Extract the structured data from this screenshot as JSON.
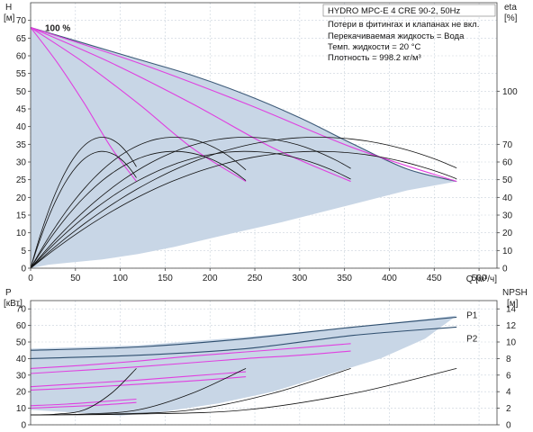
{
  "chart_data": [
    {
      "type": "line",
      "title": "HYDRO MPC-E 4 CRE 90-2, 50Hz",
      "notes": [
        "Потери в фитингах и клапанах не вкл.",
        "Перекачиваемая жидкость = Вода",
        "Темп. жидкости = 20 °C",
        "Плотность = 998.2 кг/м³"
      ],
      "ylabel_line1": "H",
      "ylabel_line2": "[м]",
      "y2label_line1": "eta",
      "y2label_line2": "[%]",
      "xlabel": "Q [м³/ч]",
      "xlim": [
        0,
        520
      ],
      "ylim": [
        0,
        75
      ],
      "y2lim": [
        0,
        150
      ],
      "xticks": [
        0,
        50,
        100,
        150,
        200,
        250,
        300,
        350,
        400,
        450,
        500
      ],
      "yticks": [
        0,
        5,
        10,
        15,
        20,
        25,
        30,
        35,
        40,
        45,
        50,
        55,
        60,
        65,
        70
      ],
      "y2ticks": [
        0,
        10,
        20,
        30,
        40,
        50,
        60,
        70,
        100
      ],
      "grid": true,
      "annotations": [
        {
          "text": "100 %",
          "x": 12,
          "y": 67.5
        }
      ],
      "envelope": {
        "x": [
          0,
          60,
          120,
          180,
          240,
          300,
          360,
          420,
          475,
          420,
          350,
          280,
          210,
          160,
          120,
          80,
          40,
          20,
          0
        ],
        "y": [
          68,
          63.5,
          59,
          54.5,
          49,
          42.5,
          35,
          28,
          24.5,
          22,
          17.5,
          13,
          9,
          6,
          4,
          2.5,
          1.5,
          1,
          0
        ]
      },
      "head_curves": [
        {
          "x": [
            0,
            30,
            60,
            90,
            118
          ],
          "y": [
            68,
            58,
            46.5,
            34,
            24.5
          ]
        },
        {
          "x": [
            0,
            60,
            120,
            180,
            240
          ],
          "y": [
            68,
            58,
            46.5,
            34,
            24.5
          ]
        },
        {
          "x": [
            0,
            90,
            180,
            270,
            357
          ],
          "y": [
            68,
            58,
            46.5,
            34,
            24.5
          ]
        },
        {
          "x": [
            0,
            120,
            240,
            360,
            475
          ],
          "y": [
            68,
            58,
            46.5,
            34,
            24.5
          ]
        }
      ],
      "efficiency_curves": [
        {
          "peak_x": 80,
          "max_x": 118,
          "peak": 74
        },
        {
          "peak_x": 160,
          "max_x": 240,
          "peak": 74
        },
        {
          "peak_x": 240,
          "max_x": 357,
          "peak": 74
        },
        {
          "peak_x": 320,
          "max_x": 475,
          "peak": 74
        },
        {
          "peak_x": 80,
          "max_x": 118,
          "peak": 66
        },
        {
          "peak_x": 160,
          "max_x": 240,
          "peak": 66
        },
        {
          "peak_x": 240,
          "max_x": 357,
          "peak": 66
        },
        {
          "peak_x": 320,
          "max_x": 475,
          "peak": 66
        }
      ]
    },
    {
      "type": "line",
      "ylabel_line1": "P",
      "ylabel_line2": "[кВт]",
      "y2label_line1": "NPSH",
      "y2label_line2": "[м]",
      "xlim": [
        0,
        520
      ],
      "ylim": [
        0,
        75
      ],
      "y2lim": [
        0,
        15
      ],
      "yticks": [
        0,
        10,
        20,
        30,
        40,
        50,
        60,
        70
      ],
      "y2ticks": [
        0,
        2,
        4,
        6,
        8,
        10,
        12,
        14
      ],
      "grid": true,
      "labels": [
        {
          "text": "P1",
          "x": 480,
          "y": 66
        },
        {
          "text": "P2",
          "x": 480,
          "y": 52
        }
      ],
      "envelope": {
        "x": [
          0,
          120,
          240,
          360,
          475,
          440,
          390,
          330,
          270,
          210,
          150,
          100,
          60,
          30,
          0
        ],
        "y": [
          46,
          48,
          53,
          59,
          66,
          52,
          40,
          30,
          20,
          13,
          8,
          5.5,
          7,
          8,
          9
        ]
      },
      "series": [
        {
          "name": "P1",
          "x": [
            0,
            120,
            240,
            360,
            475
          ],
          "y": [
            45,
            47,
            52,
            59,
            65
          ]
        },
        {
          "name": "P2",
          "x": [
            0,
            120,
            240,
            360,
            475
          ],
          "y": [
            40,
            42,
            46,
            54,
            59
          ]
        }
      ],
      "power_curves_magenta": [
        {
          "x": [
            0,
            60,
            120,
            180,
            240,
            300,
            357
          ],
          "y": [
            34,
            36,
            38.5,
            41.5,
            44,
            46.5,
            49
          ]
        },
        {
          "x": [
            0,
            60,
            120,
            180,
            240,
            300,
            357
          ],
          "y": [
            31,
            33,
            35,
            37.5,
            40,
            42,
            44.5
          ]
        },
        {
          "x": [
            0,
            60,
            120,
            180,
            240
          ],
          "y": [
            23,
            25,
            27,
            29.5,
            32
          ]
        },
        {
          "x": [
            0,
            60,
            120,
            180,
            240
          ],
          "y": [
            21,
            22.5,
            24.5,
            26.5,
            29
          ]
        },
        {
          "x": [
            0,
            40,
            80,
            118
          ],
          "y": [
            11.5,
            12.5,
            14,
            15.5
          ]
        },
        {
          "x": [
            0,
            40,
            80,
            118
          ],
          "y": [
            10,
            11,
            12,
            13.5
          ]
        }
      ],
      "npsh_curves": [
        {
          "x": [
            0,
            30,
            60,
            90,
            118
          ],
          "y": [
            1.2,
            1.3,
            1.8,
            3.8,
            6.8
          ]
        },
        {
          "x": [
            0,
            60,
            120,
            180,
            240
          ],
          "y": [
            1.2,
            1.3,
            1.8,
            3.8,
            6.8
          ]
        },
        {
          "x": [
            0,
            90,
            180,
            270,
            357
          ],
          "y": [
            1.2,
            1.3,
            1.8,
            3.8,
            6.8
          ]
        },
        {
          "x": [
            0,
            120,
            240,
            360,
            475
          ],
          "y": [
            1.2,
            1.3,
            1.8,
            3.8,
            6.8
          ]
        }
      ]
    }
  ]
}
